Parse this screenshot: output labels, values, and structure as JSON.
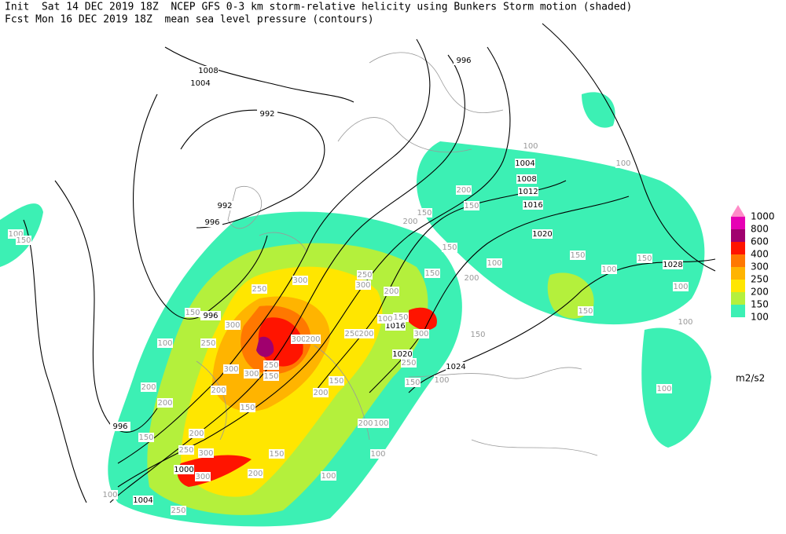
{
  "header": {
    "line1": "Init  Sat 14 DEC 2019 18Z  NCEP GFS 0-3 km storm-relative helicity using Bunkers Storm motion (shaded)",
    "line2": "Fcst Mon 16 DEC 2019 18Z  mean sea level pressure (contours)"
  },
  "legend": {
    "levels": [
      "1000",
      "800",
      "600",
      "400",
      "300",
      "250",
      "200",
      "150",
      "100"
    ],
    "colors": [
      "#ff8cc8",
      "#e600b4",
      "#a0006e",
      "#ff1400",
      "#ff7800",
      "#ffb400",
      "#ffe600",
      "#b4f03c",
      "#3cf0b4"
    ],
    "units": "m2/s2"
  },
  "map": {
    "isobar_labels": [
      "1008",
      "1004",
      "992",
      "996",
      "1004",
      "1008",
      "1012",
      "1016",
      "1020",
      "1028",
      "992",
      "996",
      "996",
      "996",
      "1000",
      "1004",
      "1016",
      "1020",
      "1024"
    ],
    "helicity_labels": [
      "100",
      "150",
      "100",
      "100",
      "150",
      "200",
      "150",
      "200",
      "150",
      "100",
      "150",
      "200",
      "150",
      "150",
      "100",
      "100",
      "150",
      "100",
      "250",
      "300",
      "200",
      "300",
      "250",
      "150",
      "300",
      "100",
      "250",
      "300",
      "300",
      "150",
      "250",
      "300",
      "200",
      "100",
      "150",
      "250",
      "200",
      "300",
      "150",
      "200",
      "200",
      "200",
      "150",
      "200",
      "150",
      "200",
      "100",
      "150",
      "200",
      "250",
      "300",
      "200",
      "150",
      "300",
      "100",
      "250",
      "100",
      "100",
      "150",
      "100",
      "250",
      "100"
    ]
  }
}
